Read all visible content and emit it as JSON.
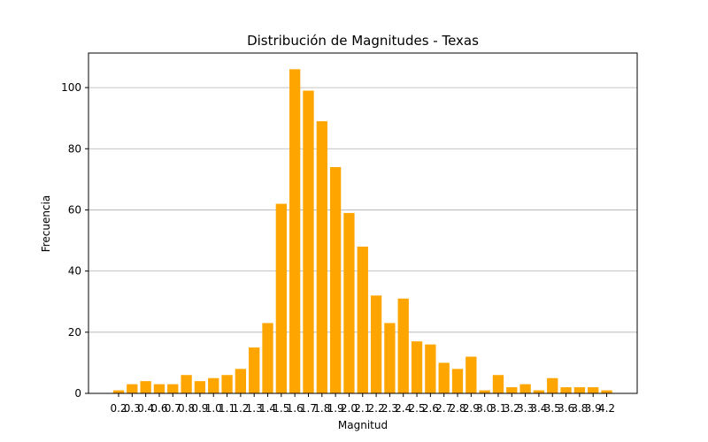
{
  "chart_data": {
    "type": "bar",
    "title": "Distribución de Magnitudes - Texas",
    "xlabel": "Magnitud",
    "ylabel": "Frecuencia",
    "categories": [
      "0.2",
      "0.3",
      "0.4",
      "0.6",
      "0.7",
      "0.8",
      "0.9",
      "1.0",
      "1.1",
      "1.2",
      "1.3",
      "1.4",
      "1.5",
      "1.6",
      "1.7",
      "1.8",
      "1.9",
      "2.0",
      "2.1",
      "2.2",
      "2.3",
      "2.4",
      "2.5",
      "2.6",
      "2.7",
      "2.8",
      "2.9",
      "3.0",
      "3.1",
      "3.2",
      "3.3",
      "3.4",
      "3.5",
      "3.6",
      "3.8",
      "3.9",
      "4.2"
    ],
    "values": [
      1,
      3,
      4,
      3,
      3,
      6,
      4,
      5,
      6,
      8,
      15,
      23,
      62,
      106,
      99,
      89,
      74,
      59,
      48,
      32,
      23,
      31,
      17,
      16,
      10,
      8,
      12,
      1,
      6,
      2,
      3,
      1,
      5,
      2,
      2,
      2,
      1
    ],
    "yticks": [
      0,
      20,
      40,
      60,
      80,
      100
    ],
    "ylim": [
      0,
      111.3
    ],
    "grid": "y",
    "bar_color": "#ffa500"
  }
}
